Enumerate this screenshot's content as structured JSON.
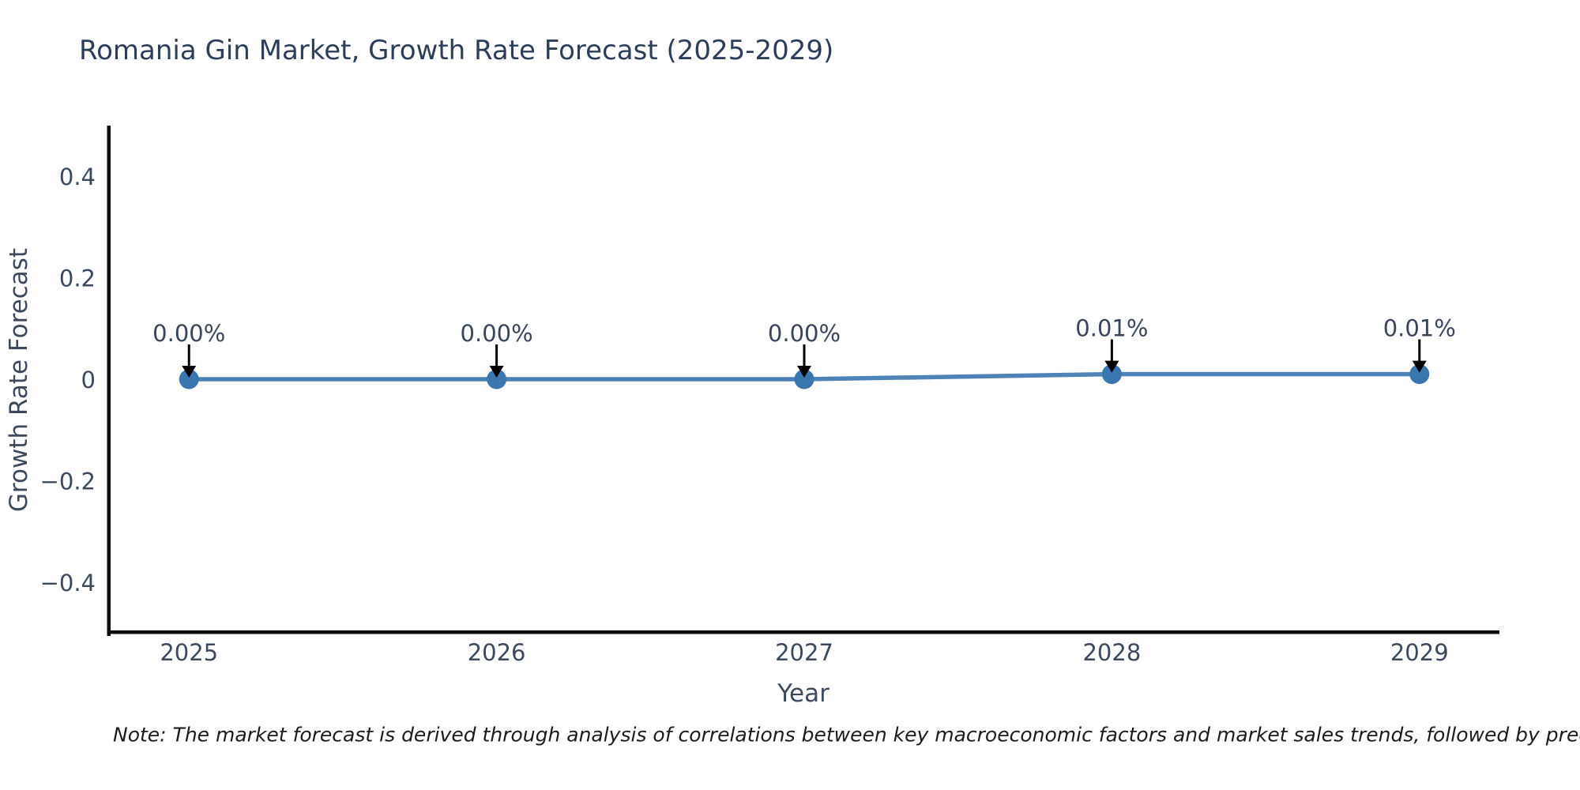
{
  "chart_data": {
    "type": "line",
    "title": "Romania Gin Market, Growth Rate Forecast (2025-2029)",
    "xlabel": "Year",
    "ylabel": "Growth Rate Forecast",
    "x": [
      2025,
      2026,
      2027,
      2028,
      2029
    ],
    "values": [
      0.0,
      0.0,
      0.0,
      0.01,
      0.01
    ],
    "point_labels": [
      "0.00%",
      "0.00%",
      "0.00%",
      "0.01%",
      "0.01%"
    ],
    "xtick_labels": [
      "2025",
      "2026",
      "2027",
      "2028",
      "2029"
    ],
    "ytick_values": [
      0.4,
      0.2,
      0,
      -0.2,
      -0.4
    ],
    "ytick_labels": [
      "0.4",
      "0.2",
      "0",
      "−0.2",
      "−0.4"
    ],
    "xlim": [
      2024.74,
      2029.26
    ],
    "ylim": [
      -0.5,
      0.5
    ],
    "grid": false,
    "legend": false,
    "note": "Note: The market forecast is derived through analysis of correlations between key macroeconomic factors and market sales trends, followed by predictive modeling to project future sa",
    "colors": {
      "line": "#4d83b6",
      "marker": "#3a76b0",
      "arrow": "#000000",
      "spine": "#0d0d0d",
      "title": "#2d3e59",
      "tick": "#3c4a5e",
      "annotation": "#39465a",
      "note": "#1c1c1c"
    }
  }
}
